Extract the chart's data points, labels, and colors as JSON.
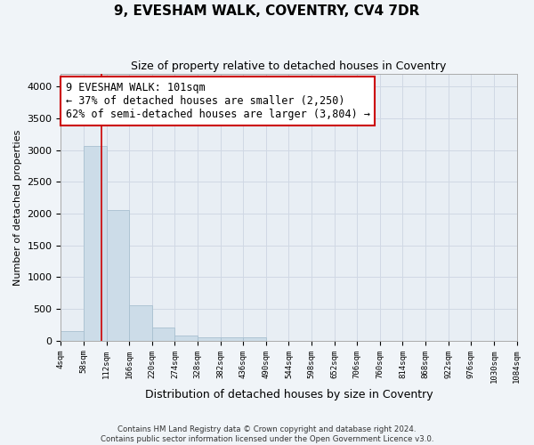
{
  "title": "9, EVESHAM WALK, COVENTRY, CV4 7DR",
  "subtitle": "Size of property relative to detached houses in Coventry",
  "xlabel": "Distribution of detached houses by size in Coventry",
  "ylabel": "Number of detached properties",
  "bin_edges": [
    4,
    58,
    112,
    166,
    220,
    274,
    328,
    382,
    436,
    490,
    544,
    598,
    652,
    706,
    760,
    814,
    868,
    922,
    976,
    1030,
    1084
  ],
  "bar_heights": [
    150,
    3060,
    2050,
    550,
    200,
    80,
    50,
    50,
    50,
    0,
    0,
    0,
    0,
    0,
    0,
    0,
    0,
    0,
    0,
    0
  ],
  "bar_color": "#ccdce8",
  "bar_edge_color": "#a8c0d0",
  "grid_color": "#d0d8e4",
  "property_sqm": 101,
  "vline_color": "#cc0000",
  "annotation_line1": "9 EVESHAM WALK: 101sqm",
  "annotation_line2": "← 37% of detached houses are smaller (2,250)",
  "annotation_line3": "62% of semi-detached houses are larger (3,804) →",
  "annotation_box_color": "#ffffff",
  "annotation_box_edge": "#cc0000",
  "ylim": [
    0,
    4200
  ],
  "yticks": [
    0,
    500,
    1000,
    1500,
    2000,
    2500,
    3000,
    3500,
    4000
  ],
  "footer_line1": "Contains HM Land Registry data © Crown copyright and database right 2024.",
  "footer_line2": "Contains public sector information licensed under the Open Government Licence v3.0.",
  "bg_color": "#f0f4f8",
  "plot_bg_color": "#e8eef4"
}
